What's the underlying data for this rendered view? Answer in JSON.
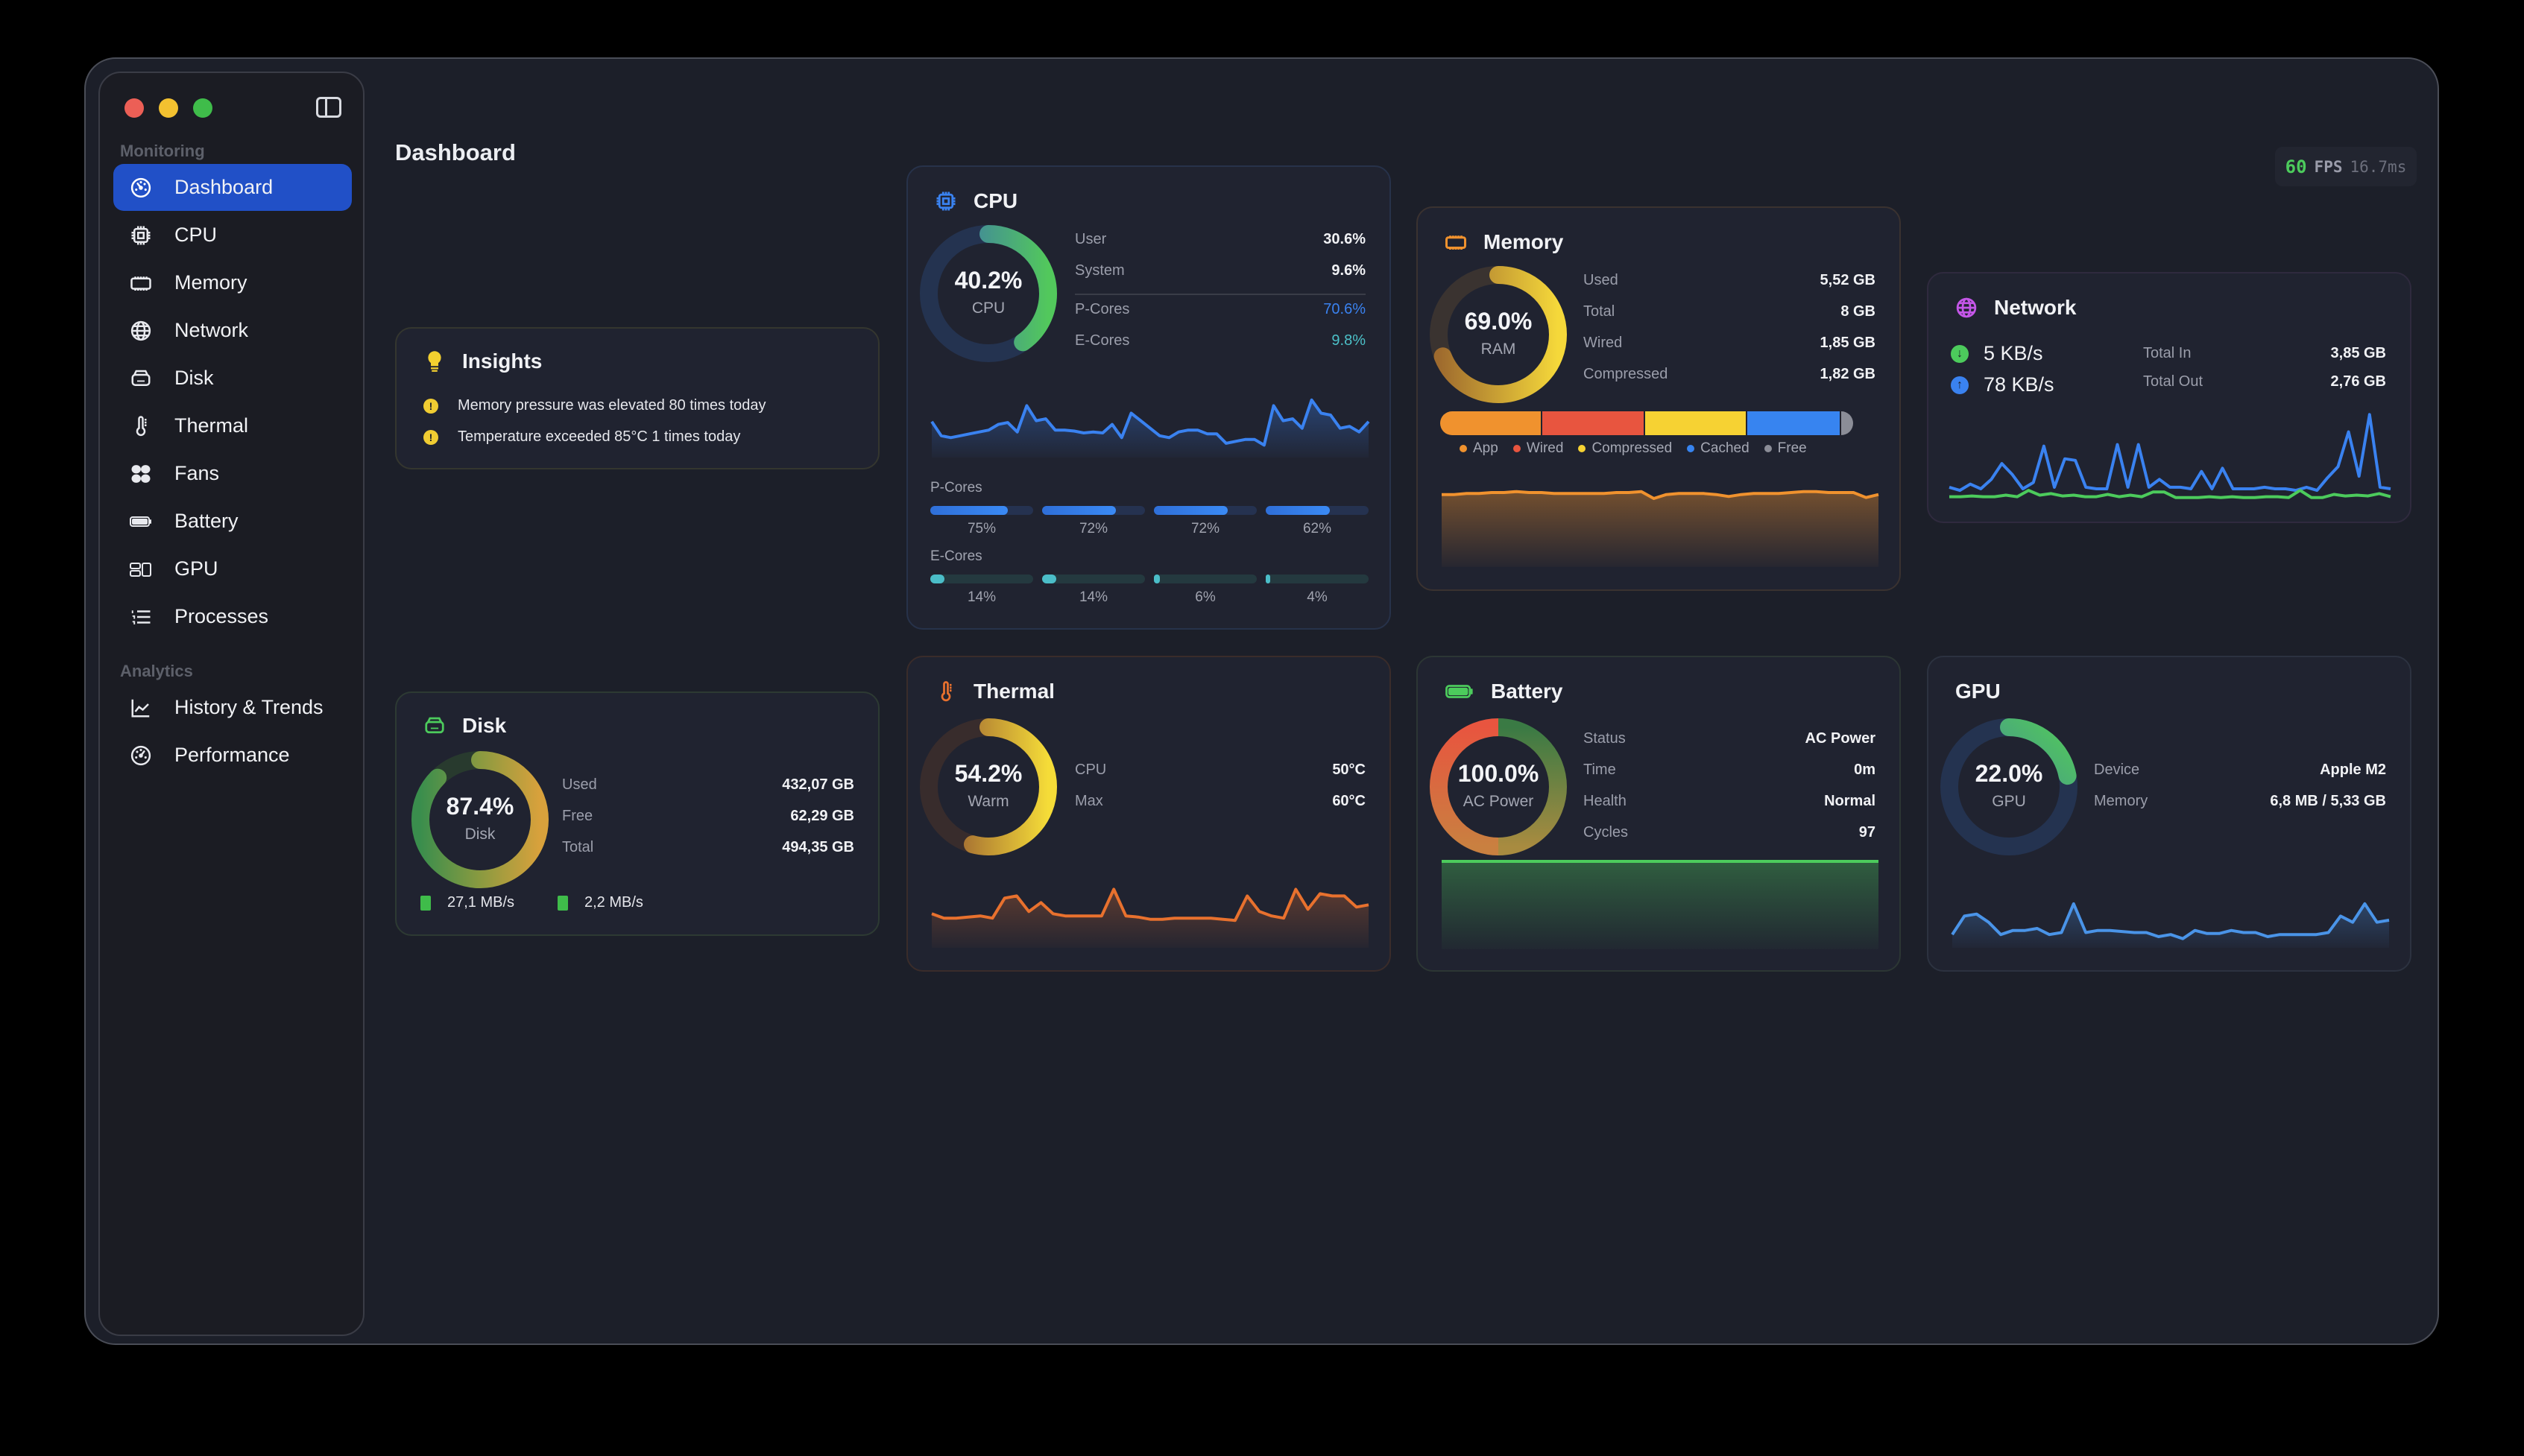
{
  "window": {
    "title": "Dashboard"
  },
  "sidebar": {
    "sections": [
      {
        "label": "Monitoring",
        "items": [
          {
            "label": "Dashboard",
            "icon": "gauge-icon",
            "active": true
          },
          {
            "label": "CPU",
            "icon": "cpu-icon"
          },
          {
            "label": "Memory",
            "icon": "memory-icon"
          },
          {
            "label": "Network",
            "icon": "globe-icon"
          },
          {
            "label": "Disk",
            "icon": "disk-icon"
          },
          {
            "label": "Thermal",
            "icon": "thermometer-icon"
          },
          {
            "label": "Fans",
            "icon": "fan-icon"
          },
          {
            "label": "Battery",
            "icon": "battery-icon"
          },
          {
            "label": "GPU",
            "icon": "gpu-icon"
          },
          {
            "label": "Processes",
            "icon": "list-icon"
          }
        ]
      },
      {
        "label": "Analytics",
        "items": [
          {
            "label": "History & Trends",
            "icon": "chart-line-icon"
          },
          {
            "label": "Performance",
            "icon": "gauge-icon"
          }
        ]
      }
    ]
  },
  "fps": {
    "value": "60",
    "label": "FPS",
    "frame_time": "16.7ms"
  },
  "insights": {
    "title": "Insights",
    "items": [
      "Memory pressure was elevated 80 times today",
      "Temperature exceeded 85°C 1 times today"
    ]
  },
  "cpu": {
    "title": "CPU",
    "ring_value": "40.2%",
    "ring_label": "CPU",
    "percent": 40.2,
    "stats": [
      {
        "label": "User",
        "value": "30.6%"
      },
      {
        "label": "System",
        "value": "9.6%"
      },
      {
        "label": "P-Cores",
        "value": "70.6%"
      },
      {
        "label": "E-Cores",
        "value": "9.8%"
      }
    ],
    "p_cores_label": "P-Cores",
    "p_cores": [
      {
        "pct": 75,
        "label": "75%"
      },
      {
        "pct": 72,
        "label": "72%"
      },
      {
        "pct": 72,
        "label": "72%"
      },
      {
        "pct": 62,
        "label": "62%"
      }
    ],
    "e_cores_label": "E-Cores",
    "e_cores": [
      {
        "pct": 14,
        "label": "14%"
      },
      {
        "pct": 14,
        "label": "14%"
      },
      {
        "pct": 6,
        "label": "6%"
      },
      {
        "pct": 4,
        "label": "4%"
      }
    ],
    "history": [
      45,
      30,
      28,
      30,
      32,
      34,
      36,
      42,
      44,
      34,
      62,
      46,
      48,
      36,
      36,
      35,
      33,
      34,
      33,
      42,
      28,
      54,
      46,
      38,
      30,
      28,
      34,
      36,
      36,
      32,
      32,
      22,
      24,
      26,
      26,
      20,
      62,
      46,
      48,
      38,
      68,
      54,
      52,
      38,
      40,
      34,
      45
    ],
    "color": "#3a82f0"
  },
  "memory": {
    "title": "Memory",
    "ring_value": "69.0%",
    "ring_label": "RAM",
    "percent": 69.0,
    "stats": [
      {
        "label": "Used",
        "value": "5,52 GB"
      },
      {
        "label": "Total",
        "value": "8 GB"
      },
      {
        "label": "Wired",
        "value": "1,85 GB"
      },
      {
        "label": "Compressed",
        "value": "1,82 GB"
      }
    ],
    "segments": [
      {
        "name": "App",
        "color": "#f0922e",
        "width": 135
      },
      {
        "name": "Wired",
        "color": "#e8553f",
        "width": 136
      },
      {
        "name": "Compressed",
        "color": "#f6d233",
        "width": 135
      },
      {
        "name": "Cached",
        "color": "#3784f0",
        "width": 124
      },
      {
        "name": "Free",
        "color": "#8b8d97",
        "width": 16
      }
    ],
    "history": [
      70,
      70,
      71,
      71,
      72,
      72,
      73,
      72,
      72,
      71,
      71,
      71,
      71,
      71,
      72,
      72,
      73,
      66,
      70,
      71,
      71,
      71,
      70,
      68,
      70,
      71,
      71,
      71,
      72,
      73,
      73,
      72,
      72,
      72,
      67,
      70
    ],
    "color": "#f0922e"
  },
  "network": {
    "title": "Network",
    "download": "5 KB/s",
    "upload": "78 KB/s",
    "stats": [
      {
        "label": "Total In",
        "value": "3,85 GB"
      },
      {
        "label": "Total Out",
        "value": "2,76 GB"
      }
    ],
    "history_out": [
      18,
      14,
      22,
      16,
      28,
      48,
      34,
      16,
      24,
      70,
      18,
      54,
      52,
      18,
      16,
      16,
      72,
      18,
      72,
      18,
      28,
      18,
      18,
      16,
      38,
      16,
      42,
      16,
      16,
      16,
      18,
      16,
      16,
      14,
      18,
      14,
      30,
      44,
      88,
      32,
      110,
      18,
      16
    ],
    "history_in": [
      6,
      6,
      7,
      6,
      6,
      8,
      6,
      14,
      8,
      10,
      7,
      8,
      6,
      6,
      9,
      6,
      8,
      6,
      12,
      12,
      5,
      5,
      5,
      6,
      5,
      6,
      5,
      5,
      6,
      6,
      5,
      14,
      5,
      5,
      9,
      7,
      8,
      7,
      10,
      6
    ],
    "color_out": "#3a82f0",
    "color_in": "#4ccb5c"
  },
  "disk": {
    "title": "Disk",
    "ring_value": "87.4%",
    "ring_label": "Disk",
    "percent": 87.4,
    "stats": [
      {
        "label": "Used",
        "value": "432,07 GB"
      },
      {
        "label": "Free",
        "value": "62,29 GB"
      },
      {
        "label": "Total",
        "value": "494,35 GB"
      }
    ],
    "read": "27,1 MB/s",
    "write": "2,2 MB/s"
  },
  "thermal": {
    "title": "Thermal",
    "ring_value": "54.2%",
    "ring_label": "Warm",
    "percent": 54.2,
    "stats": [
      {
        "label": "CPU",
        "value": "50°C"
      },
      {
        "label": "Max",
        "value": "60°C"
      }
    ],
    "history": [
      28,
      24,
      24,
      25,
      26,
      24,
      42,
      44,
      30,
      38,
      28,
      26,
      26,
      26,
      26,
      50,
      26,
      25,
      23,
      23,
      24,
      24,
      24,
      24,
      23,
      22,
      44,
      30,
      26,
      24,
      50,
      32,
      46,
      44,
      44,
      34,
      36
    ],
    "color": "#e8712e"
  },
  "battery": {
    "title": "Battery",
    "ring_value": "100.0%",
    "ring_label": "AC Power",
    "percent": 100.0,
    "stats": [
      {
        "label": "Status",
        "value": "AC Power"
      },
      {
        "label": "Time",
        "value": "0m"
      },
      {
        "label": "Health",
        "value": "Normal"
      },
      {
        "label": "Cycles",
        "value": "97"
      }
    ],
    "history": [
      100,
      100,
      100,
      100,
      100,
      100,
      100,
      100,
      100,
      100
    ],
    "color": "#4ccb5c"
  },
  "gpu": {
    "title": "GPU",
    "ring_value": "22.0%",
    "ring_label": "GPU",
    "percent": 22.0,
    "stats": [
      {
        "label": "Device",
        "value": "Apple M2"
      },
      {
        "label": "Memory",
        "value": "6,8 MB / 5,33 GB"
      }
    ],
    "history": [
      10,
      28,
      30,
      22,
      10,
      14,
      14,
      16,
      10,
      12,
      40,
      12,
      14,
      14,
      13,
      12,
      12,
      8,
      10,
      6,
      14,
      11,
      11,
      14,
      12,
      12,
      8,
      10,
      10,
      10,
      10,
      12,
      28,
      22,
      40,
      22,
      24
    ],
    "color": "#4a94e8"
  }
}
